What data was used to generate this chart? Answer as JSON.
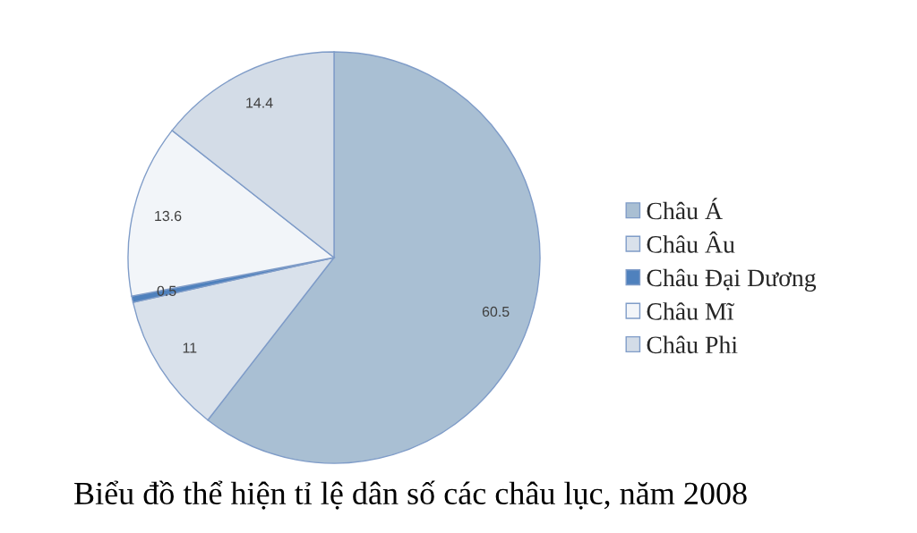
{
  "chart_data": {
    "type": "pie",
    "title": "Biểu đồ thể hiện tỉ lệ dân số các châu lục, năm 2008",
    "categories": [
      "Châu Á",
      "Châu Âu",
      "Châu Đại Dương",
      "Châu Mĩ",
      "Châu Phi"
    ],
    "values": [
      60.5,
      11,
      0.5,
      13.6,
      14.4
    ],
    "colors": [
      "#a9bfd3",
      "#d9e1eb",
      "#4f81bd",
      "#f2f5f9",
      "#d3dce7"
    ],
    "data_labels": true,
    "legend": "right"
  }
}
